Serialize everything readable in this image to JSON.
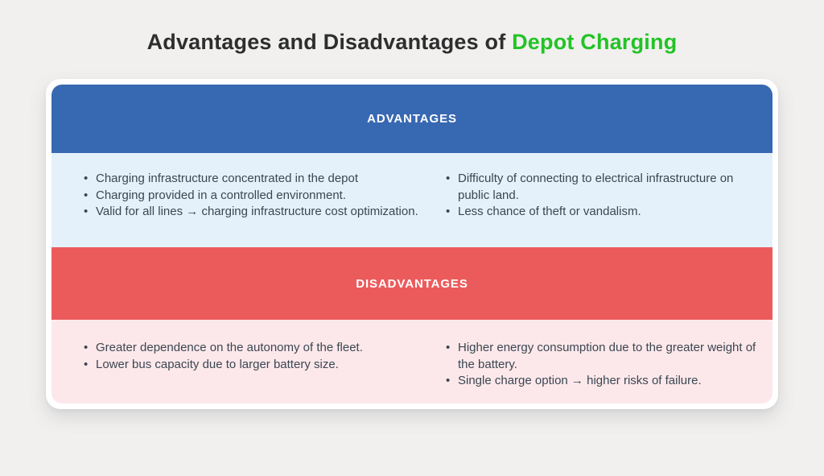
{
  "title": {
    "prefix": "Advantages and Disadvantages of ",
    "highlight": "Depot Charging"
  },
  "colors": {
    "page_background": "#f1f0ee",
    "advantages_header_bg": "#3768b2",
    "advantages_body_bg": "#e4f1fb",
    "disadvantages_header_bg": "#ec5b5c",
    "disadvantages_body_bg": "#fce8eb",
    "title_text": "#2d2e2e",
    "title_highlight": "#22c326",
    "header_text": "#ffffff",
    "body_text": "#3b4650"
  },
  "sections": [
    {
      "label": "ADVANTAGES",
      "columns": [
        [
          "Charging infrastructure concentrated in the depot",
          "Charging provided in a controlled environment.",
          "Valid for all lines → charging infrastructure cost optimization."
        ],
        [
          "Difficulty of connecting to electrical infrastructure on public land.",
          "Less chance of theft or vandalism."
        ]
      ]
    },
    {
      "label": "DISADVANTAGES",
      "columns": [
        [
          "Greater dependence on the autonomy of the fleet.",
          "Lower bus capacity due to larger battery size."
        ],
        [
          "Higher energy consumption due to the greater weight of the battery.",
          "Single charge option → higher risks of failure."
        ]
      ]
    }
  ]
}
